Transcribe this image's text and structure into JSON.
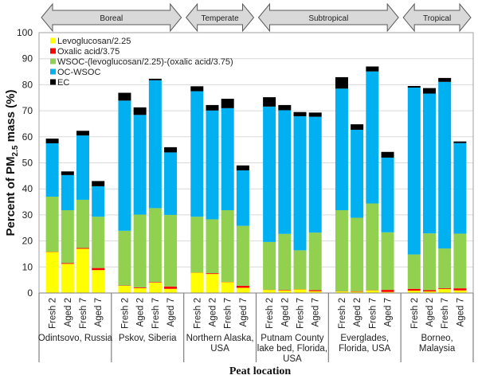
{
  "chart_data": {
    "type": "bar",
    "stacked": true,
    "title": "",
    "xlabel": "Peat location",
    "ylabel": "Percent of PM2.5 mass (%)",
    "ylabel_parts": {
      "prefix": "Percent of PM",
      "subscript": "2.5",
      "suffix": " mass (%)"
    },
    "ylim": [
      0,
      100
    ],
    "yticks": [
      0,
      10,
      20,
      30,
      40,
      50,
      60,
      70,
      80,
      90,
      100
    ],
    "grid": true,
    "legend_position": "top-left",
    "climate_zones": [
      {
        "label": "Boreal",
        "groups": [
          0,
          1
        ]
      },
      {
        "label": "Temperate",
        "groups": [
          2
        ]
      },
      {
        "label": "Subtropical",
        "groups": [
          3,
          4
        ]
      },
      {
        "label": "Tropical",
        "groups": [
          5
        ]
      }
    ],
    "groups": [
      {
        "label": [
          "Odintsovo, Russia"
        ]
      },
      {
        "label": [
          "Pskov, Siberia"
        ]
      },
      {
        "label": [
          "Northern Alaska,",
          "USA"
        ]
      },
      {
        "label": [
          "Putnam County",
          "lake bed, Florida,",
          "USA"
        ]
      },
      {
        "label": [
          "Everglades,",
          "Florida, USA"
        ]
      },
      {
        "label": [
          "Borneo,",
          "Malaysia"
        ]
      }
    ],
    "categories": [
      "Fresh 2",
      "Aged 2",
      "Fresh 7",
      "Aged 7",
      "Fresh 2",
      "Aged 2",
      "Fresh 7",
      "Aged 7",
      "Fresh 2",
      "Aged 2",
      "Fresh 7",
      "Aged 7",
      "Fresh 2",
      "Aged 2",
      "Fresh 7",
      "Aged 7",
      "Fresh 2",
      "Aged 2",
      "Fresh 7",
      "Aged 7",
      "Fresh 2",
      "Aged 2",
      "Fresh 7",
      "Aged 7"
    ],
    "series": [
      {
        "name": "Levoglucosan/2.25",
        "color": "#ffff00",
        "values": [
          15.8,
          11.2,
          17.0,
          8.8,
          2.8,
          1.9,
          4.0,
          1.6,
          7.8,
          7.3,
          4.2,
          2.0,
          1.2,
          1.0,
          1.4,
          0.7,
          0.6,
          0.5,
          1.0,
          0.4,
          0.9,
          0.6,
          1.5,
          1.0
        ]
      },
      {
        "name": "Oxalic acid/3.75",
        "color": "#ff0000",
        "values": [
          0.1,
          0.3,
          0.3,
          0.8,
          0.1,
          0.3,
          0.2,
          0.9,
          0.1,
          0.3,
          0.1,
          0.8,
          0.1,
          0.2,
          0.1,
          0.4,
          0.1,
          0.2,
          0.1,
          0.8,
          0.7,
          0.5,
          0.3,
          0.8
        ]
      },
      {
        "name": "WSOC-(levoglucosan/2.25)-(oxalic acid/3.75)",
        "color": "#92d050",
        "values": [
          21.1,
          20.3,
          18.5,
          19.7,
          21.0,
          27.9,
          28.4,
          27.5,
          21.4,
          20.7,
          27.5,
          23.0,
          18.3,
          21.5,
          14.9,
          22.1,
          31.1,
          28.2,
          33.3,
          22.1,
          13.2,
          21.8,
          15.3,
          21.0
        ]
      },
      {
        "name": "OC-WSOC",
        "color": "#00b0f0",
        "values": [
          20.5,
          13.5,
          24.7,
          11.7,
          50.0,
          38.3,
          49.1,
          24.0,
          48.2,
          41.8,
          39.2,
          21.3,
          52.0,
          47.5,
          51.5,
          44.5,
          46.7,
          33.8,
          50.7,
          28.7,
          64.1,
          53.7,
          64.0,
          34.8
        ]
      },
      {
        "name": "EC",
        "color": "#000000",
        "values": [
          1.8,
          1.4,
          1.8,
          2.0,
          3.0,
          2.9,
          0.6,
          2.0,
          1.9,
          2.1,
          3.6,
          1.9,
          3.6,
          2.0,
          1.6,
          1.6,
          4.4,
          2.1,
          1.9,
          2.2,
          0.6,
          2.1,
          1.5,
          0.6
        ]
      }
    ]
  }
}
